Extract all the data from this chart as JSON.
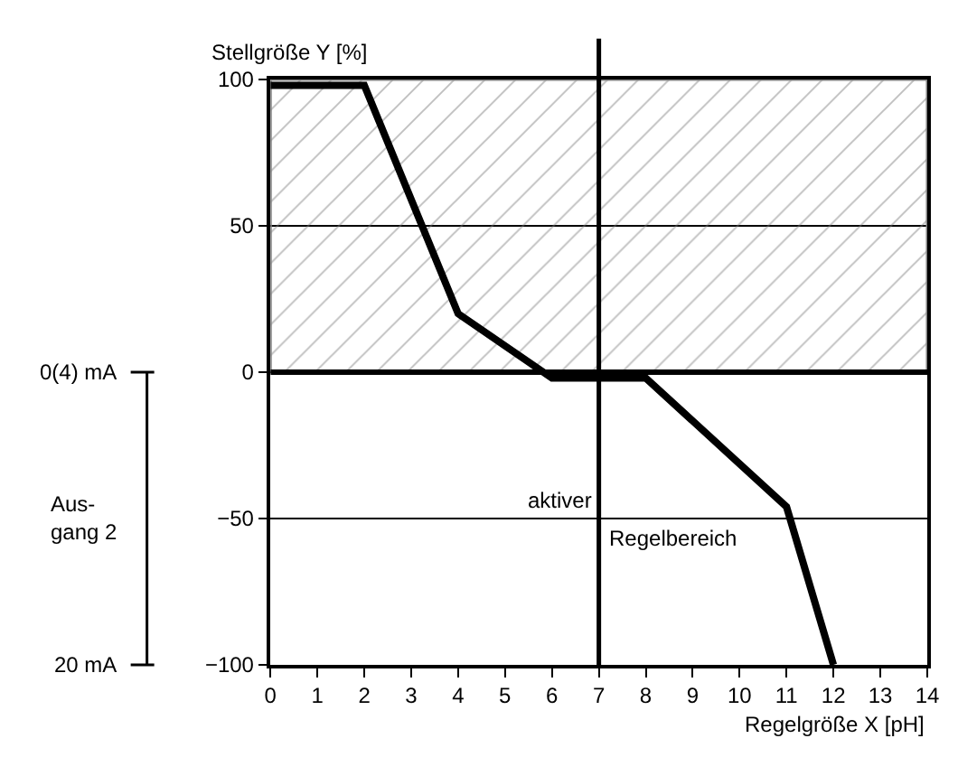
{
  "chart_data": {
    "type": "line",
    "x": [
      0,
      2,
      4,
      6,
      8,
      11,
      12
    ],
    "series": [
      {
        "color": "#000000",
        "values": [
          98,
          98,
          20,
          -2,
          -2,
          -46,
          -100
        ]
      }
    ],
    "xlabel": "Regelgröße X [pH]",
    "ylabel": "Stellgröße Y [%]",
    "xlim": [
      0,
      14
    ],
    "xticks": [
      0,
      1,
      2,
      3,
      4,
      5,
      6,
      7,
      8,
      9,
      10,
      11,
      12,
      13,
      14
    ],
    "ylim": [
      -100,
      100
    ],
    "yticks": [
      {
        "value": -100,
        "label": "−100"
      },
      {
        "value": -50,
        "label": "−50"
      },
      0,
      50,
      100
    ],
    "grid": "y",
    "marker": "none",
    "line_style": "solid",
    "ref_lines": [
      {
        "axis": "x",
        "value": 7,
        "color": "#000000"
      },
      {
        "axis": "y",
        "value": 0,
        "color": "#000000"
      }
    ],
    "bands": [
      {
        "axis": "y",
        "from": 0,
        "to": 100,
        "color": "#808080"
      }
    ],
    "annotations": [
      "0(4) mA",
      "Aus-\ngang 2",
      "20 mA",
      {
        "text": "aktiver",
        "x": 7,
        "y": -50
      },
      {
        "text": "Regelbereich",
        "x": 7,
        "y": -50
      }
    ]
  }
}
